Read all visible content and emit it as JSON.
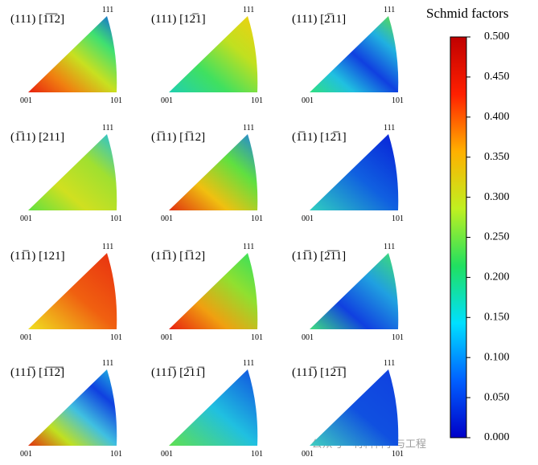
{
  "panels": [
    {
      "label": "(111) [1̅1̅2]",
      "colors": [
        "#e8200f",
        "#f08010",
        "#c8e020",
        "#40e070",
        "#1060e0"
      ]
    },
    {
      "label": "(111) [12̅1]",
      "colors": [
        "#20d0b0",
        "#40e060",
        "#c0e020",
        "#f0d010"
      ]
    },
    {
      "label": "(111) [2̅11]",
      "colors": [
        "#30e080",
        "#20c0e0",
        "#1040e0",
        "#20b0e0",
        "#60e040"
      ]
    },
    {
      "label": "(1̅11) [211]",
      "colors": [
        "#60e040",
        "#d0e020",
        "#a0e030",
        "#20c0e0"
      ]
    },
    {
      "label": "(1̅11) [1̅12]",
      "colors": [
        "#e03010",
        "#f0c010",
        "#60e040",
        "#2080e0"
      ]
    },
    {
      "label": "(1̅11) [12̅1]",
      "colors": [
        "#30d0c0",
        "#1060e0",
        "#0820d8"
      ]
    },
    {
      "label": "(11̅1) [121]",
      "colors": [
        "#f0e020",
        "#f06010",
        "#e83010"
      ]
    },
    {
      "label": "(11̅1) [1̅12]",
      "colors": [
        "#e82010",
        "#f0a010",
        "#90e030",
        "#30e060"
      ]
    },
    {
      "label": "(11̅1) [2̅1̅1]",
      "colors": [
        "#40e080",
        "#1040e0",
        "#20a0e0",
        "#40e070"
      ]
    },
    {
      "label": "(111̅) [1̅1̅2̅]",
      "colors": [
        "#e03010",
        "#c0e020",
        "#40c0e0",
        "#1040e0",
        "#20c0e0"
      ]
    },
    {
      "label": "(111̅) [2̅11̅]",
      "colors": [
        "#60e050",
        "#20c0e0",
        "#1050e0"
      ]
    },
    {
      "label": "(111̅) [12̅1̅]",
      "colors": [
        "#40d0c0",
        "#1050e0",
        "#1040e0"
      ]
    }
  ],
  "corners": {
    "origin": "001",
    "right": "101",
    "top": "111"
  },
  "colorbar": {
    "title": "Schmid factors",
    "range": [
      0,
      0.5
    ],
    "ticks": [
      {
        "value": 0,
        "label": "0.000"
      },
      {
        "value": 0.05,
        "label": "0.050"
      },
      {
        "value": 0.1,
        "label": "0.100"
      },
      {
        "value": 0.15,
        "label": "0.150"
      },
      {
        "value": 0.2,
        "label": "0.200"
      },
      {
        "value": 0.25,
        "label": "0.250"
      },
      {
        "value": 0.3,
        "label": "0.300"
      },
      {
        "value": 0.35,
        "label": "0.350"
      },
      {
        "value": 0.4,
        "label": "0.400"
      },
      {
        "value": 0.45,
        "label": "0.450"
      },
      {
        "value": 0.5,
        "label": "0.500"
      }
    ],
    "colors": [
      "#0000c8",
      "#0060ff",
      "#00e0ff",
      "#20e060",
      "#c0f020",
      "#ffb000",
      "#ff2000",
      "#c00000"
    ]
  },
  "watermark": "公众号 · 材料科学与工程"
}
